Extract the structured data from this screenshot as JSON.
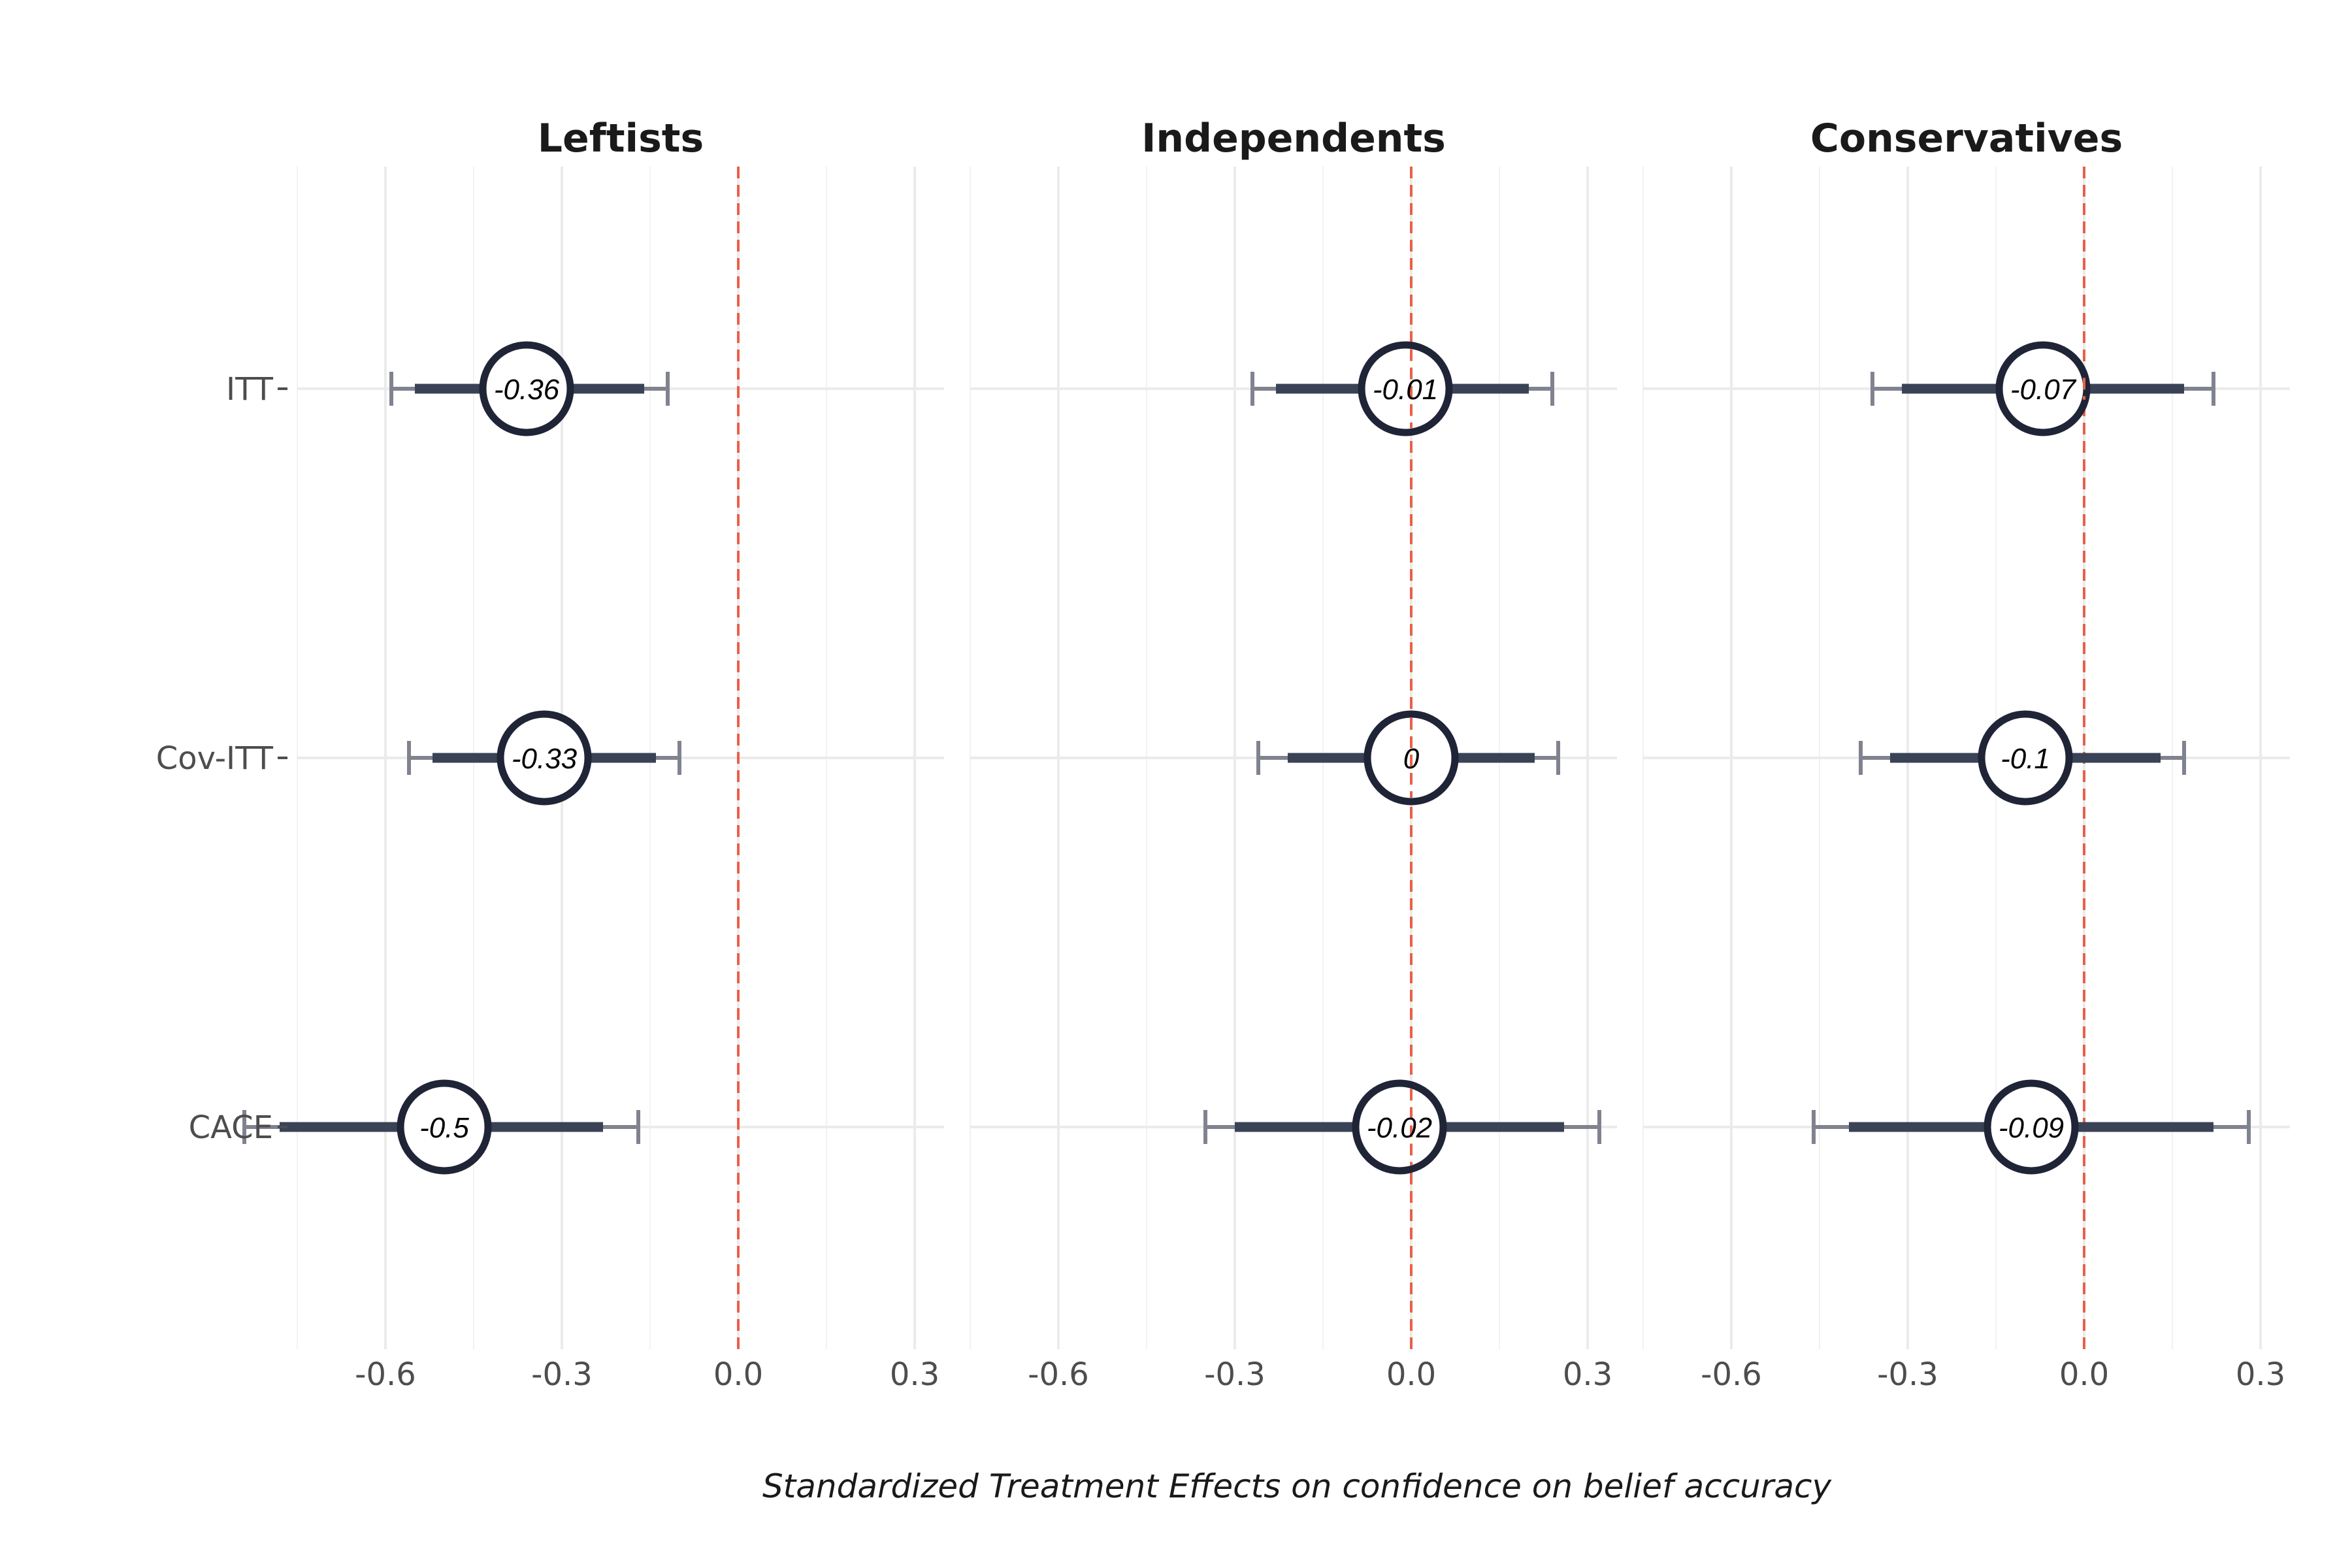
{
  "chart_data": {
    "type": "scatter",
    "xlabel": "Standardized Treatment Effects on confidence on belief accuracy",
    "categories": [
      "ITT",
      "Cov-ITT",
      "CACE"
    ],
    "xlim": [
      -0.75,
      0.35
    ],
    "xticks": [
      -0.6,
      -0.3,
      0.0,
      0.3
    ],
    "xtick_labels": [
      "-0.6",
      "-0.3",
      "0.0",
      "0.3"
    ],
    "reference_line": 0,
    "grid": true,
    "colors": {
      "point_stroke": "#1f2437",
      "inner_ci": "#3a4256",
      "outer_ci": "#80838f",
      "reference_line": "#e8604c",
      "grid": "#ebebeb"
    },
    "panels": [
      {
        "title": "Leftists",
        "points": [
          {
            "category": "ITT",
            "estimate": -0.36,
            "label": "-0.36",
            "ci90": [
              -0.55,
              -0.16
            ],
            "ci95": [
              -0.59,
              -0.12
            ]
          },
          {
            "category": "Cov-ITT",
            "estimate": -0.33,
            "label": "-0.33",
            "ci90": [
              -0.52,
              -0.14
            ],
            "ci95": [
              -0.56,
              -0.1
            ]
          },
          {
            "category": "CACE",
            "estimate": -0.5,
            "label": "-0.5",
            "ci90": [
              -0.78,
              -0.23
            ],
            "ci95": [
              -0.84,
              -0.17
            ]
          }
        ]
      },
      {
        "title": "Independents",
        "points": [
          {
            "category": "ITT",
            "estimate": -0.01,
            "label": "-0.01",
            "ci90": [
              -0.23,
              0.2
            ],
            "ci95": [
              -0.27,
              0.24
            ]
          },
          {
            "category": "Cov-ITT",
            "estimate": 0,
            "label": "0",
            "ci90": [
              -0.21,
              0.21
            ],
            "ci95": [
              -0.26,
              0.25
            ]
          },
          {
            "category": "CACE",
            "estimate": -0.02,
            "label": "-0.02",
            "ci90": [
              -0.3,
              0.26
            ],
            "ci95": [
              -0.35,
              0.32
            ]
          }
        ]
      },
      {
        "title": "Conservatives",
        "points": [
          {
            "category": "ITT",
            "estimate": -0.07,
            "label": "-0.07",
            "ci90": [
              -0.31,
              0.17
            ],
            "ci95": [
              -0.36,
              0.22
            ]
          },
          {
            "category": "Cov-ITT",
            "estimate": -0.1,
            "label": "-0.1",
            "ci90": [
              -0.33,
              0.13
            ],
            "ci95": [
              -0.38,
              0.17
            ]
          },
          {
            "category": "CACE",
            "estimate": -0.09,
            "label": "-0.09",
            "ci90": [
              -0.4,
              0.22
            ],
            "ci95": [
              -0.46,
              0.28
            ]
          }
        ]
      }
    ]
  }
}
